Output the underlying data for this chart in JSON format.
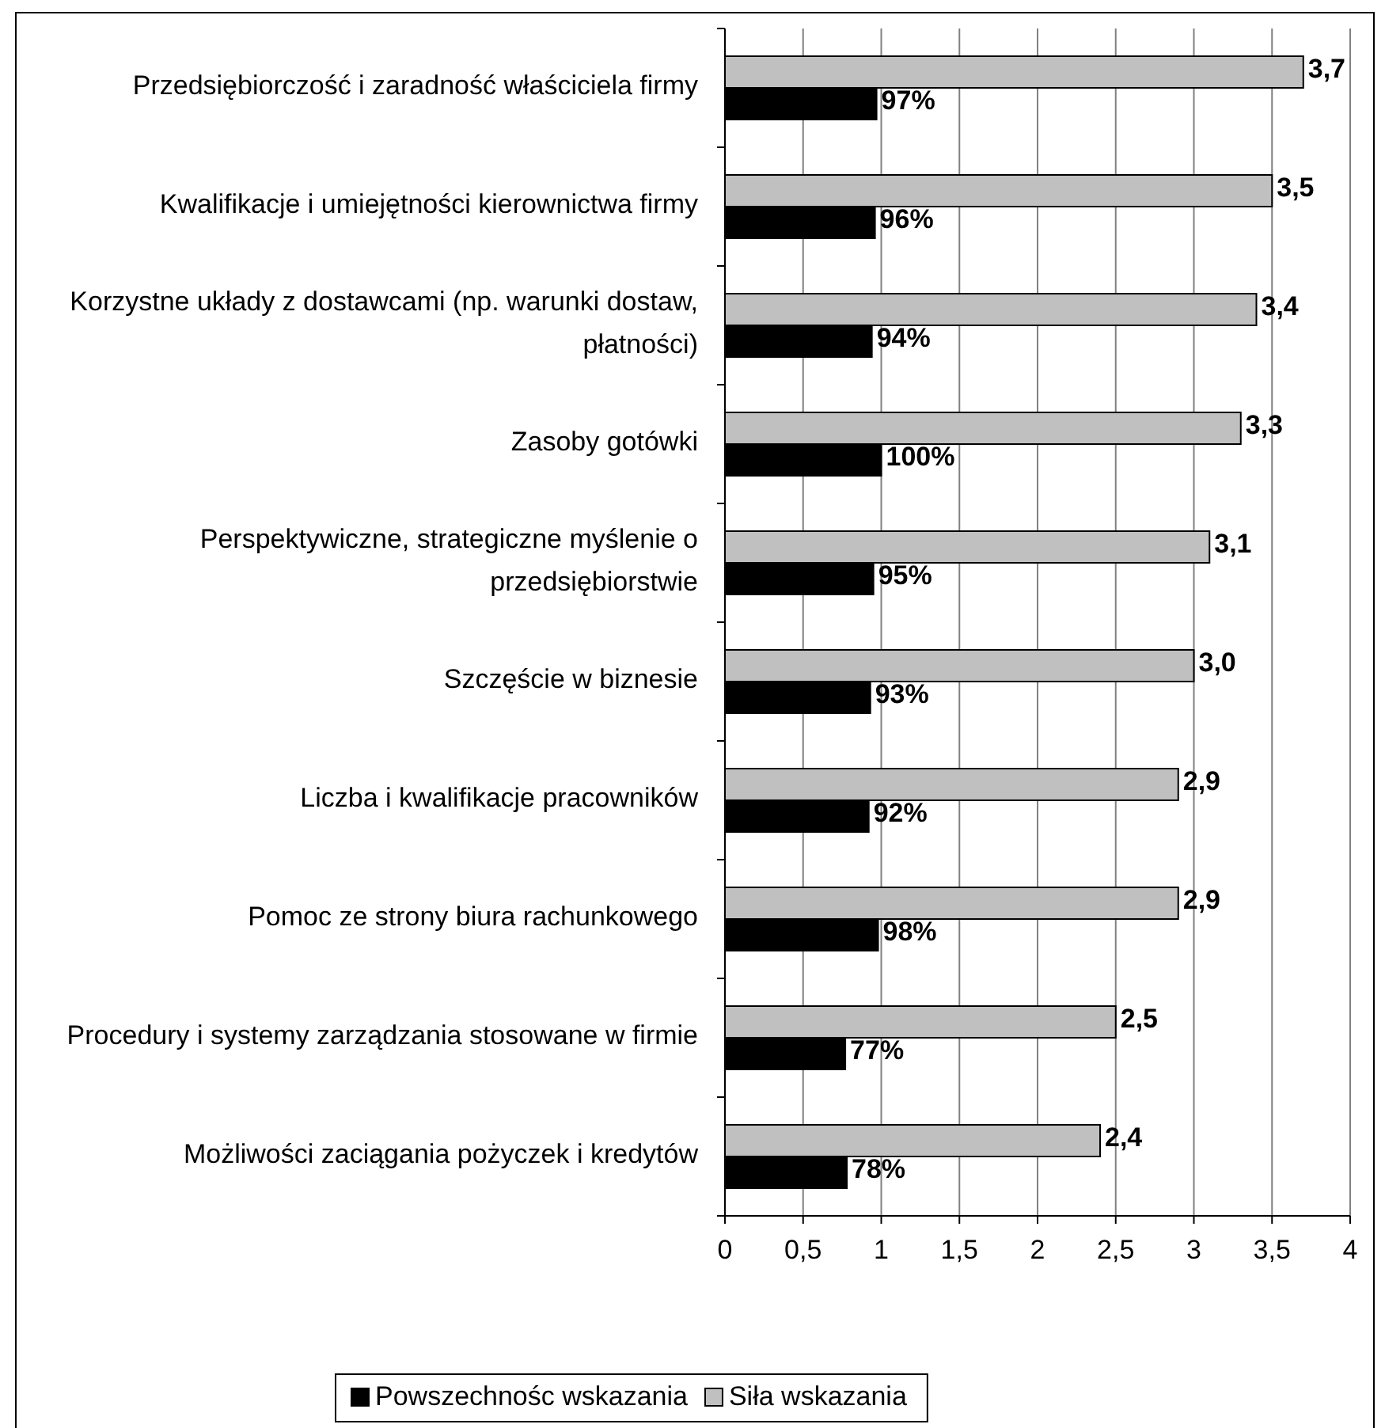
{
  "chart_data": {
    "type": "bar",
    "orientation": "horizontal",
    "categories": [
      "Przedsiębiorczość i zaradność właściciela firmy",
      "Kwalifikacje i umiejętności kierownictwa firmy",
      "Korzystne układy z dostawcami (np. warunki dostaw, płatności)",
      "Zasoby gotówki",
      "Perspektywiczne, strategiczne myślenie o przedsiębiorstwie",
      "Szczęście w biznesie",
      "Liczba i kwalifikacje pracowników",
      "Pomoc ze strony biura rachunkowego",
      "Procedury i systemy zarządzania stosowane w firmie",
      "Możliwości zaciągania pożyczek i kredytów"
    ],
    "series": [
      {
        "name": "Powszechnośc wskazania",
        "color": "#000000",
        "values": [
          0.97,
          0.96,
          0.94,
          1.0,
          0.95,
          0.93,
          0.92,
          0.98,
          0.77,
          0.78
        ],
        "value_labels": [
          "97%",
          "96%",
          "94%",
          "100%",
          "95%",
          "93%",
          "92%",
          "98%",
          "77%",
          "78%"
        ]
      },
      {
        "name": "Siła wskazania",
        "color": "#c0c0c0",
        "values": [
          3.7,
          3.5,
          3.4,
          3.3,
          3.1,
          3.0,
          2.9,
          2.9,
          2.5,
          2.4
        ],
        "value_labels": [
          "3,7",
          "3,5",
          "3,4",
          "3,3",
          "3,1",
          "3,0",
          "2,9",
          "2,9",
          "2,5",
          "2,4"
        ]
      }
    ],
    "xlim": [
      0,
      4
    ],
    "xticks": [
      0,
      {
        "value": 0.5,
        "label": "0,5"
      },
      1,
      {
        "value": 1.5,
        "label": "1,5"
      },
      2,
      {
        "value": 2.5,
        "label": "2,5"
      },
      3,
      {
        "value": 3.5,
        "label": "3,5"
      },
      4
    ],
    "grid": "x",
    "legend": "bottom"
  }
}
